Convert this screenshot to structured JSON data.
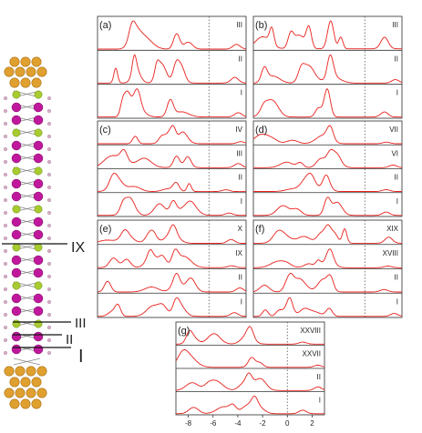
{
  "colors": {
    "curve": "#e8201c",
    "frame": "#444444",
    "fermi": "#555555",
    "gold": "#e0a030",
    "magenta": "#c0189c",
    "green": "#a8cc30",
    "bond": "#8a8a8a"
  },
  "structure": {
    "markers": [
      {
        "label": "IX"
      },
      {
        "label": "III"
      },
      {
        "label": "II"
      },
      {
        "label": "I"
      }
    ]
  },
  "panels": [
    {
      "id": "(a)",
      "rows": [
        "III",
        "II",
        "I"
      ]
    },
    {
      "id": "(b)",
      "rows": [
        "III",
        "II",
        "I"
      ]
    },
    {
      "id": "(c)",
      "rows": [
        "IV",
        "III",
        "II",
        "I"
      ]
    },
    {
      "id": "(d)",
      "rows": [
        "VII",
        "VI",
        "II",
        "I"
      ]
    },
    {
      "id": "(e)",
      "rows": [
        "X",
        "IX",
        "II",
        "I"
      ]
    },
    {
      "id": "(f)",
      "rows": [
        "XIX",
        "XVIII",
        "II",
        "I"
      ]
    },
    {
      "id": "(g)",
      "rows": [
        "XXVIII",
        "XXVII",
        "II",
        "I"
      ]
    }
  ],
  "chart_data": {
    "type": "line",
    "xlim": [
      -9,
      3
    ],
    "x_ticks": [
      "-8",
      "-6",
      "-4",
      "-2",
      "0",
      "2"
    ],
    "fermi_level": 0
  }
}
